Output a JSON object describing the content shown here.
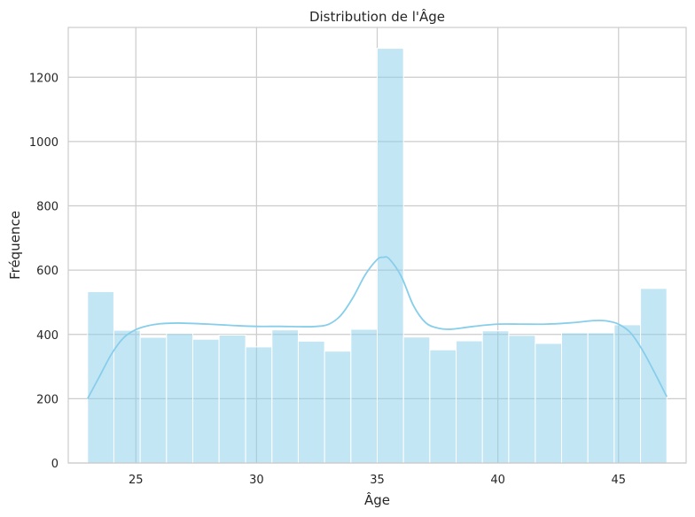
{
  "chart_data": {
    "type": "bar",
    "subtype": "histogram",
    "title": "Distribution de l'Âge",
    "xlabel": "Âge",
    "ylabel": "Fréquence",
    "xlim": [
      22.2,
      47.8
    ],
    "ylim": [
      0,
      1355
    ],
    "xticks": [
      25,
      30,
      35,
      40,
      45
    ],
    "yticks": [
      0,
      200,
      400,
      600,
      800,
      1000,
      1200
    ],
    "grid": true,
    "bin_edges": [
      23.0,
      24.09,
      25.18,
      26.27,
      27.36,
      28.45,
      29.55,
      30.64,
      31.73,
      32.82,
      33.91,
      35.0,
      36.09,
      37.18,
      38.27,
      39.36,
      40.45,
      41.55,
      42.64,
      43.73,
      44.82,
      45.91,
      47.0
    ],
    "values": [
      533,
      413,
      391,
      403,
      385,
      398,
      361,
      414,
      379,
      348,
      416,
      1290,
      392,
      352,
      380,
      411,
      397,
      372,
      405,
      405,
      430,
      543
    ],
    "kde": {
      "x": [
        23.0,
        23.5,
        24.0,
        24.5,
        25.0,
        25.5,
        26.0,
        26.5,
        27.0,
        28.0,
        29.0,
        30.0,
        31.0,
        32.0,
        32.5,
        33.0,
        33.5,
        34.0,
        34.5,
        35.0,
        35.25,
        35.5,
        36.0,
        36.5,
        37.0,
        37.5,
        38.0,
        38.5,
        39.0,
        40.0,
        41.0,
        42.0,
        43.0,
        44.0,
        44.5,
        45.0,
        45.5,
        46.0,
        46.5,
        47.0
      ],
      "y": [
        200,
        270,
        340,
        390,
        415,
        427,
        433,
        435,
        435,
        432,
        428,
        425,
        425,
        424,
        425,
        432,
        460,
        515,
        585,
        633,
        640,
        635,
        580,
        490,
        437,
        420,
        416,
        420,
        425,
        432,
        432,
        432,
        436,
        443,
        442,
        432,
        405,
        350,
        280,
        206
      ]
    },
    "colors": {
      "bar": "#87ceeb",
      "kde": "#87ceeb",
      "grid": "#cccccc",
      "frame": "#cccccc"
    }
  }
}
